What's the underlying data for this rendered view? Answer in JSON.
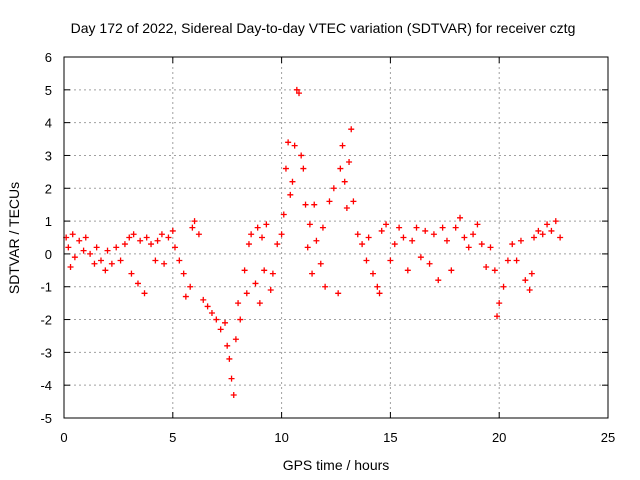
{
  "chart_data": {
    "type": "scatter",
    "title": "Day 172 of 2022, Sidereal Day-to-day VTEC variation (SDTVAR) for receiver cztg",
    "xlabel": "GPS time / hours",
    "ylabel": "SDTVAR / TECUs",
    "xlim": [
      0,
      25
    ],
    "ylim": [
      -5,
      6
    ],
    "xticks": [
      "0",
      "5",
      "10",
      "15",
      "20",
      "25"
    ],
    "yticks": [
      "-5",
      "-4",
      "-3",
      "-2",
      "-1",
      "0",
      "1",
      "2",
      "3",
      "4",
      "5",
      "6"
    ],
    "grid": true,
    "marker": "+",
    "series_color": "#ff0000",
    "series": [
      {
        "name": "SDTVAR",
        "points": [
          [
            0.1,
            0.5
          ],
          [
            0.2,
            0.2
          ],
          [
            0.3,
            -0.4
          ],
          [
            0.4,
            0.6
          ],
          [
            0.5,
            -0.1
          ],
          [
            0.7,
            0.4
          ],
          [
            0.9,
            0.1
          ],
          [
            1.0,
            0.5
          ],
          [
            1.2,
            0.0
          ],
          [
            1.4,
            -0.3
          ],
          [
            1.5,
            0.2
          ],
          [
            1.7,
            -0.2
          ],
          [
            1.9,
            -0.5
          ],
          [
            2.0,
            0.1
          ],
          [
            2.2,
            -0.3
          ],
          [
            2.4,
            0.2
          ],
          [
            2.6,
            -0.2
          ],
          [
            2.8,
            0.3
          ],
          [
            3.0,
            0.5
          ],
          [
            3.1,
            -0.6
          ],
          [
            3.2,
            0.6
          ],
          [
            3.4,
            -0.9
          ],
          [
            3.5,
            0.4
          ],
          [
            3.7,
            -1.2
          ],
          [
            3.8,
            0.5
          ],
          [
            4.0,
            0.3
          ],
          [
            4.2,
            -0.2
          ],
          [
            4.3,
            0.4
          ],
          [
            4.5,
            0.6
          ],
          [
            4.6,
            -0.3
          ],
          [
            4.8,
            0.5
          ],
          [
            5.0,
            0.7
          ],
          [
            5.1,
            0.2
          ],
          [
            5.3,
            -0.2
          ],
          [
            5.5,
            -0.6
          ],
          [
            5.6,
            -1.3
          ],
          [
            5.8,
            -1.0
          ],
          [
            5.9,
            0.8
          ],
          [
            6.0,
            1.0
          ],
          [
            6.2,
            0.6
          ],
          [
            6.4,
            -1.4
          ],
          [
            6.6,
            -1.6
          ],
          [
            6.8,
            -1.8
          ],
          [
            7.0,
            -2.0
          ],
          [
            7.2,
            -2.3
          ],
          [
            7.4,
            -2.1
          ],
          [
            7.5,
            -2.8
          ],
          [
            7.6,
            -3.2
          ],
          [
            7.7,
            -3.8
          ],
          [
            7.8,
            -4.3
          ],
          [
            7.9,
            -2.6
          ],
          [
            8.0,
            -1.5
          ],
          [
            8.1,
            -2.0
          ],
          [
            8.3,
            -0.5
          ],
          [
            8.4,
            -1.2
          ],
          [
            8.5,
            0.3
          ],
          [
            8.6,
            0.6
          ],
          [
            8.8,
            -0.9
          ],
          [
            8.9,
            0.8
          ],
          [
            9.0,
            -1.5
          ],
          [
            9.1,
            0.5
          ],
          [
            9.2,
            -0.5
          ],
          [
            9.3,
            0.9
          ],
          [
            9.5,
            -1.1
          ],
          [
            9.6,
            -0.6
          ],
          [
            9.8,
            0.3
          ],
          [
            10.0,
            0.6
          ],
          [
            10.1,
            1.2
          ],
          [
            10.2,
            2.6
          ],
          [
            10.3,
            3.4
          ],
          [
            10.4,
            1.8
          ],
          [
            10.5,
            2.2
          ],
          [
            10.6,
            3.3
          ],
          [
            10.7,
            5.0
          ],
          [
            10.8,
            4.9
          ],
          [
            10.9,
            3.0
          ],
          [
            11.0,
            2.6
          ],
          [
            11.1,
            1.5
          ],
          [
            11.2,
            0.2
          ],
          [
            11.3,
            0.9
          ],
          [
            11.4,
            -0.6
          ],
          [
            11.5,
            1.5
          ],
          [
            11.6,
            0.4
          ],
          [
            11.8,
            -0.3
          ],
          [
            11.9,
            0.8
          ],
          [
            12.0,
            -1.0
          ],
          [
            12.2,
            1.6
          ],
          [
            12.4,
            2.0
          ],
          [
            12.6,
            -1.2
          ],
          [
            12.7,
            2.6
          ],
          [
            12.8,
            3.3
          ],
          [
            12.9,
            2.2
          ],
          [
            13.0,
            1.4
          ],
          [
            13.1,
            2.8
          ],
          [
            13.2,
            3.8
          ],
          [
            13.3,
            1.6
          ],
          [
            13.5,
            0.6
          ],
          [
            13.7,
            0.3
          ],
          [
            13.9,
            -0.2
          ],
          [
            14.0,
            0.5
          ],
          [
            14.2,
            -0.6
          ],
          [
            14.4,
            -1.0
          ],
          [
            14.5,
            -1.2
          ],
          [
            14.6,
            0.7
          ],
          [
            14.8,
            0.9
          ],
          [
            15.0,
            -0.2
          ],
          [
            15.2,
            0.3
          ],
          [
            15.4,
            0.8
          ],
          [
            15.6,
            0.5
          ],
          [
            15.8,
            -0.5
          ],
          [
            16.0,
            0.4
          ],
          [
            16.2,
            0.8
          ],
          [
            16.4,
            -0.1
          ],
          [
            16.6,
            0.7
          ],
          [
            16.8,
            -0.3
          ],
          [
            17.0,
            0.6
          ],
          [
            17.2,
            -0.8
          ],
          [
            17.4,
            0.8
          ],
          [
            17.6,
            0.4
          ],
          [
            17.8,
            -0.5
          ],
          [
            18.0,
            0.8
          ],
          [
            18.2,
            1.1
          ],
          [
            18.4,
            0.5
          ],
          [
            18.6,
            0.2
          ],
          [
            18.8,
            0.6
          ],
          [
            19.0,
            0.9
          ],
          [
            19.2,
            0.3
          ],
          [
            19.4,
            -0.4
          ],
          [
            19.6,
            0.2
          ],
          [
            19.8,
            -0.5
          ],
          [
            19.9,
            -1.9
          ],
          [
            20.0,
            -1.5
          ],
          [
            20.2,
            -1.0
          ],
          [
            20.4,
            -0.2
          ],
          [
            20.6,
            0.3
          ],
          [
            20.8,
            -0.2
          ],
          [
            21.0,
            0.4
          ],
          [
            21.2,
            -0.8
          ],
          [
            21.4,
            -1.1
          ],
          [
            21.5,
            -0.6
          ],
          [
            21.6,
            0.5
          ],
          [
            21.8,
            0.7
          ],
          [
            22.0,
            0.6
          ],
          [
            22.2,
            0.9
          ],
          [
            22.4,
            0.7
          ],
          [
            22.6,
            1.0
          ],
          [
            22.8,
            0.5
          ]
        ]
      }
    ]
  }
}
